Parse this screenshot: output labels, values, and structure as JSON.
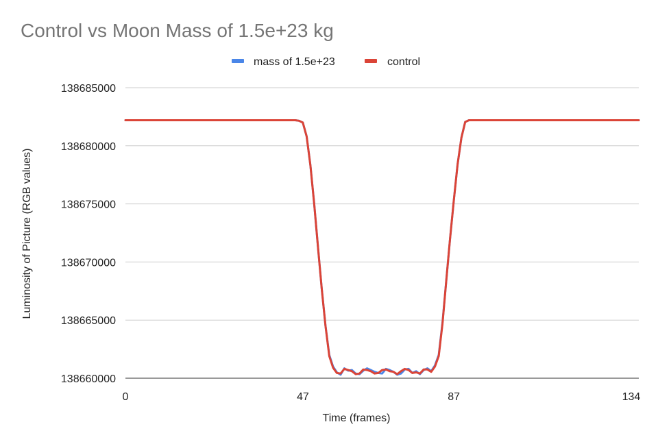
{
  "chart_data": {
    "type": "line",
    "title": "Control vs Moon Mass of 1.5e+23 kg",
    "xlabel": "Time (frames)",
    "ylabel": "Luminosity of Picture (RGB values)",
    "xlim": [
      0,
      136
    ],
    "ylim": [
      138660000,
      138685000
    ],
    "x_ticks": [
      0,
      47,
      87,
      134
    ],
    "y_ticks": [
      138660000,
      138665000,
      138670000,
      138675000,
      138680000,
      138685000
    ],
    "y_tick_labels": [
      "138660000",
      "138665000",
      "138670000",
      "138675000",
      "138680000",
      "138685000"
    ],
    "grid": true,
    "legend_position": "top",
    "series": [
      {
        "name": "mass of 1.5e+23",
        "color": "#4a86e8",
        "points": [
          [
            0,
            138682200
          ],
          [
            10,
            138682200
          ],
          [
            20,
            138682200
          ],
          [
            30,
            138682200
          ],
          [
            40,
            138682200
          ],
          [
            45,
            138682200
          ],
          [
            46,
            138682150
          ],
          [
            47,
            138682000
          ],
          [
            48,
            138680800
          ],
          [
            49,
            138678300
          ],
          [
            50,
            138675000
          ],
          [
            51,
            138671300
          ],
          [
            52,
            138667700
          ],
          [
            53,
            138664500
          ],
          [
            54,
            138662000
          ],
          [
            55,
            138661000
          ],
          [
            56,
            138660500
          ],
          [
            57,
            138660300
          ],
          [
            58,
            138660850
          ],
          [
            59,
            138660650
          ],
          [
            60,
            138660700
          ],
          [
            61,
            138660400
          ],
          [
            62,
            138660350
          ],
          [
            63,
            138660650
          ],
          [
            64,
            138660850
          ],
          [
            65,
            138660700
          ],
          [
            66,
            138660550
          ],
          [
            67,
            138660450
          ],
          [
            68,
            138660400
          ],
          [
            69,
            138660800
          ],
          [
            70,
            138660700
          ],
          [
            71,
            138660550
          ],
          [
            72,
            138660300
          ],
          [
            73,
            138660400
          ],
          [
            74,
            138660750
          ],
          [
            75,
            138660800
          ],
          [
            76,
            138660450
          ],
          [
            77,
            138660600
          ],
          [
            78,
            138660350
          ],
          [
            79,
            138660700
          ],
          [
            80,
            138660850
          ],
          [
            81,
            138660600
          ],
          [
            82,
            138661100
          ],
          [
            83,
            138662000
          ],
          [
            84,
            138664800
          ],
          [
            85,
            138668400
          ],
          [
            86,
            138672000
          ],
          [
            87,
            138675300
          ],
          [
            88,
            138678400
          ],
          [
            89,
            138680700
          ],
          [
            90,
            138682050
          ],
          [
            91,
            138682200
          ],
          [
            100,
            138682200
          ],
          [
            110,
            138682200
          ],
          [
            120,
            138682200
          ],
          [
            130,
            138682200
          ],
          [
            136,
            138682200
          ]
        ]
      },
      {
        "name": "control",
        "color": "#db4437",
        "points": [
          [
            0,
            138682200
          ],
          [
            10,
            138682200
          ],
          [
            20,
            138682200
          ],
          [
            30,
            138682200
          ],
          [
            40,
            138682200
          ],
          [
            45,
            138682200
          ],
          [
            46,
            138682150
          ],
          [
            47,
            138682000
          ],
          [
            48,
            138680800
          ],
          [
            49,
            138678300
          ],
          [
            50,
            138675000
          ],
          [
            51,
            138671300
          ],
          [
            52,
            138667700
          ],
          [
            53,
            138664500
          ],
          [
            54,
            138661900
          ],
          [
            55,
            138660900
          ],
          [
            56,
            138660450
          ],
          [
            57,
            138660400
          ],
          [
            58,
            138660800
          ],
          [
            59,
            138660700
          ],
          [
            60,
            138660600
          ],
          [
            61,
            138660350
          ],
          [
            62,
            138660400
          ],
          [
            63,
            138660750
          ],
          [
            64,
            138660700
          ],
          [
            65,
            138660600
          ],
          [
            66,
            138660400
          ],
          [
            67,
            138660450
          ],
          [
            68,
            138660700
          ],
          [
            69,
            138660750
          ],
          [
            70,
            138660600
          ],
          [
            71,
            138660550
          ],
          [
            72,
            138660350
          ],
          [
            73,
            138660600
          ],
          [
            74,
            138660800
          ],
          [
            75,
            138660700
          ],
          [
            76,
            138660450
          ],
          [
            77,
            138660500
          ],
          [
            78,
            138660400
          ],
          [
            79,
            138660750
          ],
          [
            80,
            138660750
          ],
          [
            81,
            138660550
          ],
          [
            82,
            138661000
          ],
          [
            83,
            138661900
          ],
          [
            84,
            138664700
          ],
          [
            85,
            138668400
          ],
          [
            86,
            138672000
          ],
          [
            87,
            138675300
          ],
          [
            88,
            138678400
          ],
          [
            89,
            138680700
          ],
          [
            90,
            138682050
          ],
          [
            91,
            138682200
          ],
          [
            100,
            138682200
          ],
          [
            110,
            138682200
          ],
          [
            120,
            138682200
          ],
          [
            130,
            138682200
          ],
          [
            136,
            138682200
          ]
        ]
      }
    ]
  }
}
